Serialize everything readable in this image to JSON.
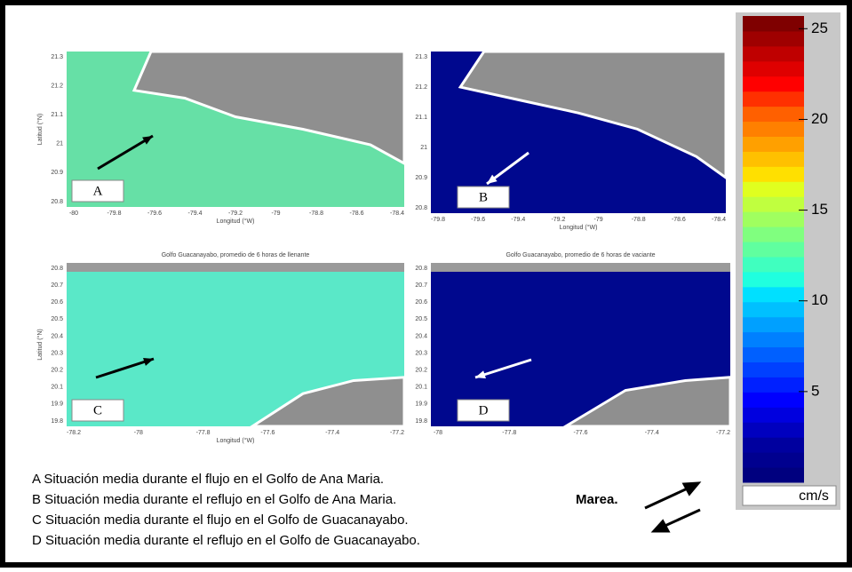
{
  "panels": [
    {
      "label": "A",
      "sea_color": "#66e0a6",
      "ylabel": "Latitud (°N)",
      "xlabel": "Longitud (°W)",
      "yticks": [
        "21.3",
        "21.2",
        "21.1",
        "21",
        "20.9",
        "20.8"
      ],
      "xticks": [
        "-80",
        "-79.8",
        "-79.6",
        "-79.4",
        "-79.2",
        "-79",
        "-78.8",
        "-78.6",
        "-78.4"
      ]
    },
    {
      "label": "B",
      "sea_color": "#00088e",
      "xlabel": "Longitud (°W)",
      "yticks": [
        "21.3",
        "21.2",
        "21.1",
        "21",
        "20.9",
        "20.8"
      ],
      "xticks": [
        "-79.8",
        "-79.6",
        "-79.4",
        "-79.2",
        "-79",
        "-78.8",
        "-78.6",
        "-78.4"
      ]
    },
    {
      "label": "C",
      "sea_color": "#5ae8c8",
      "title": "Golfo Guacanayabo, promedio de 6 horas de llenante",
      "ylabel": "Latitud (°N)",
      "xlabel": "Longitud (°W)",
      "yticks": [
        "20.8",
        "20.7",
        "20.6",
        "20.5",
        "20.4",
        "20.3",
        "20.2",
        "20.1",
        "19.9",
        "19.8"
      ],
      "xticks": [
        "-78.2",
        "-78",
        "-77.8",
        "-77.6",
        "-77.4",
        "-77.2"
      ]
    },
    {
      "label": "D",
      "sea_color": "#00088e",
      "title": "Golfo Guacanayabo, promedio de 6 horas de vaciante",
      "yticks": [
        "20.8",
        "20.7",
        "20.6",
        "20.5",
        "20.4",
        "20.3",
        "20.2",
        "20.1",
        "19.9",
        "19.8"
      ],
      "xticks": [
        "-78",
        "-77.8",
        "-77.6",
        "-77.4",
        "-77.2"
      ]
    }
  ],
  "colorbar": {
    "lim": [
      0,
      25.7
    ],
    "ticks": [
      5,
      10,
      15,
      20,
      25
    ],
    "unit": "cm/s",
    "colors": [
      "#00007f",
      "#00008f",
      "#00009f",
      "#0000bf",
      "#0000df",
      "#0000ff",
      "#0020ff",
      "#0040ff",
      "#0060ff",
      "#0080ff",
      "#00a0ff",
      "#00c0ff",
      "#00e0ff",
      "#20ffdf",
      "#40ffbf",
      "#60ff9f",
      "#80ff7f",
      "#a0ff5f",
      "#c0ff3f",
      "#e0ff1f",
      "#ffe000",
      "#ffc000",
      "#ffa000",
      "#ff8000",
      "#ff6000",
      "#ff3000",
      "#ff0000",
      "#df0000",
      "#bf0000",
      "#9f0000",
      "#7f0000"
    ]
  },
  "captions": [
    "A  Situación media durante el flujo en el Golfo de Ana Maria.",
    "B  Situación media durante el reflujo en el Golfo de Ana Maria.",
    "C  Situación media durante el flujo en el Golfo de Guacanayabo.",
    "D  Situación media durante el reflujo en el Golfo de Guacanayabo."
  ],
  "tide_label": "Marea."
}
